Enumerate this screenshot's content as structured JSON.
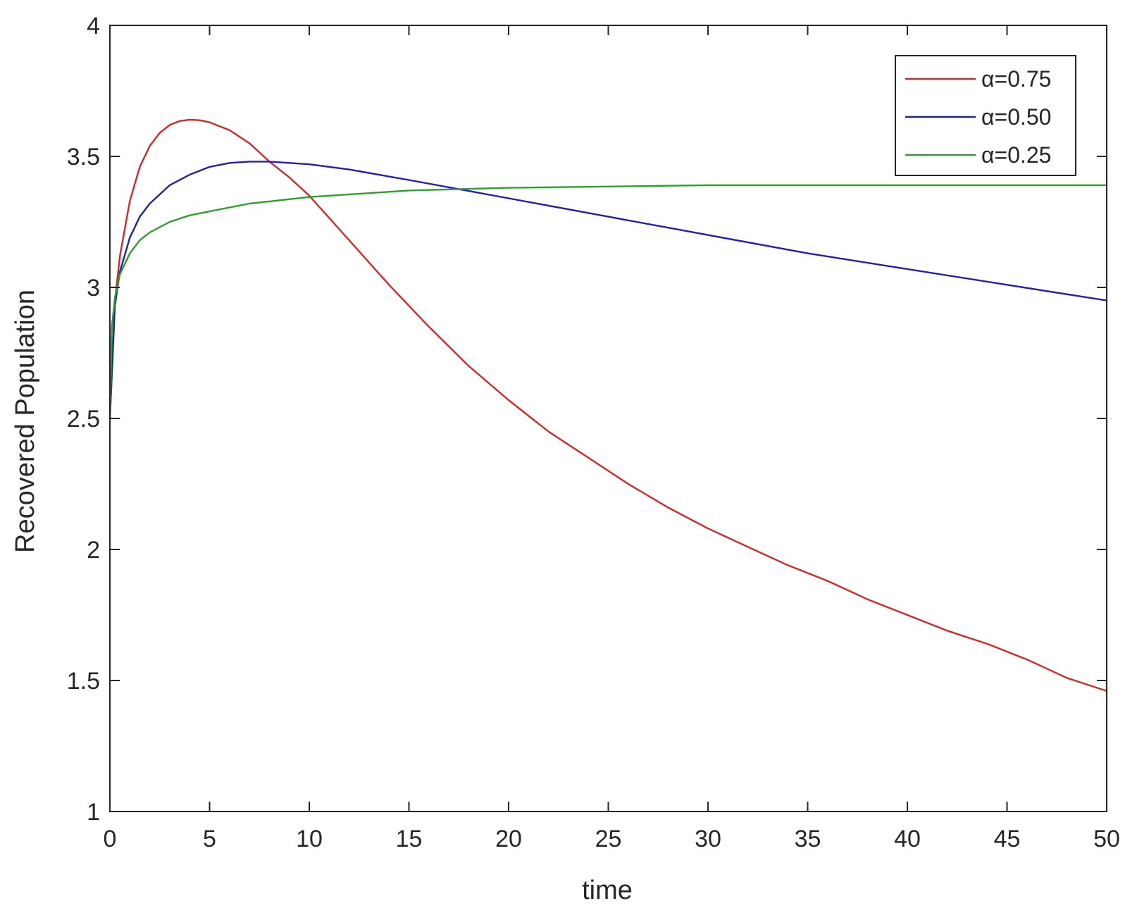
{
  "chart_data": {
    "type": "line",
    "title": "",
    "xlabel": "time",
    "ylabel": "Recovered Population",
    "xlim": [
      0,
      50
    ],
    "ylim": [
      1,
      4
    ],
    "xticks": [
      "0",
      "5",
      "10",
      "15",
      "20",
      "25",
      "30",
      "35",
      "40",
      "45",
      "50"
    ],
    "yticks": [
      "1",
      "1.5",
      "2",
      "2.5",
      "3",
      "3.5",
      "4"
    ],
    "grid": false,
    "legend_position": "top-right",
    "series": [
      {
        "name": "α=0.75",
        "color": "#d62728",
        "x": [
          0,
          0.25,
          0.5,
          1,
          1.5,
          2,
          2.5,
          3,
          3.5,
          4,
          4.5,
          5,
          6,
          7,
          8,
          9,
          10,
          12,
          14,
          16,
          18,
          20,
          22,
          24,
          26,
          28,
          30,
          32,
          34,
          36,
          38,
          40,
          42,
          44,
          46,
          48,
          50
        ],
        "y": [
          2.5,
          2.95,
          3.12,
          3.33,
          3.46,
          3.54,
          3.59,
          3.62,
          3.635,
          3.64,
          3.638,
          3.63,
          3.6,
          3.55,
          3.48,
          3.42,
          3.35,
          3.18,
          3.01,
          2.85,
          2.7,
          2.57,
          2.45,
          2.35,
          2.25,
          2.16,
          2.08,
          2.01,
          1.94,
          1.88,
          1.81,
          1.75,
          1.69,
          1.64,
          1.58,
          1.51,
          1.46
        ]
      },
      {
        "name": "α=0.50",
        "color": "#1f1fb4",
        "x": [
          0,
          0.25,
          0.5,
          1,
          1.5,
          2,
          3,
          4,
          5,
          6,
          7,
          8,
          9,
          10,
          12,
          15,
          20,
          25,
          30,
          35,
          40,
          45,
          50
        ],
        "y": [
          2.5,
          2.93,
          3.06,
          3.19,
          3.27,
          3.32,
          3.39,
          3.43,
          3.46,
          3.475,
          3.48,
          3.48,
          3.475,
          3.47,
          3.45,
          3.41,
          3.34,
          3.27,
          3.2,
          3.13,
          3.07,
          3.01,
          2.95
        ]
      },
      {
        "name": "α=0.25",
        "color": "#2ca02c",
        "x": [
          0,
          0.1,
          0.25,
          0.5,
          1,
          1.5,
          2,
          3,
          4,
          5,
          7,
          10,
          15,
          20,
          25,
          30,
          40,
          50
        ],
        "y": [
          2.5,
          2.85,
          2.96,
          3.05,
          3.13,
          3.18,
          3.21,
          3.25,
          3.275,
          3.29,
          3.32,
          3.345,
          3.37,
          3.38,
          3.385,
          3.39,
          3.39,
          3.39
        ]
      }
    ]
  }
}
